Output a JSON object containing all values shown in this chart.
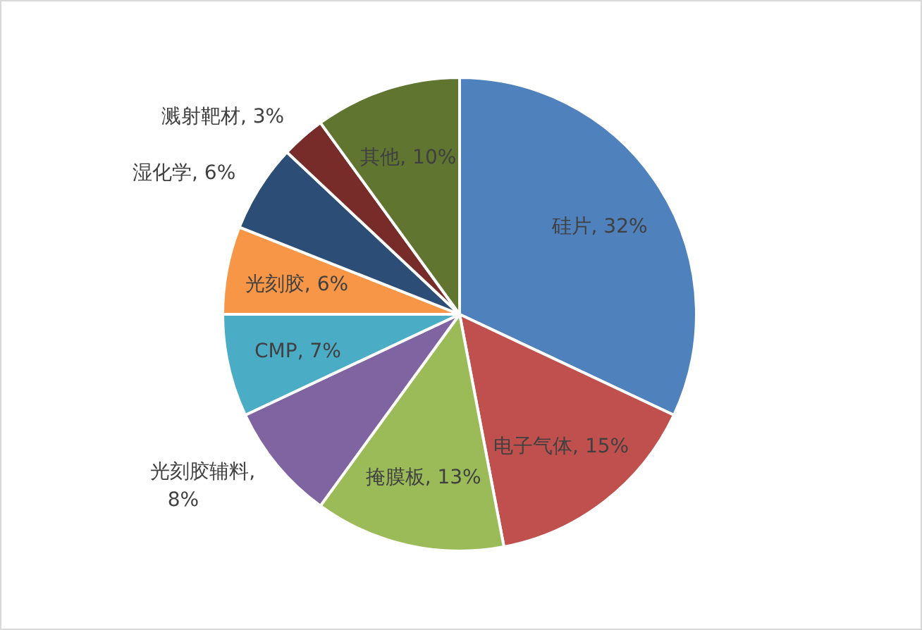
{
  "chart_data": {
    "type": "pie",
    "categories": [
      "硅片",
      "电子气体",
      "掩膜板",
      "光刻胶辅料",
      "CMP",
      "光刻胶",
      "湿化学",
      "溅射靶材",
      "其他"
    ],
    "values": [
      32,
      15,
      13,
      8,
      7,
      6,
      6,
      3,
      10
    ],
    "colors": [
      "#4f81bd",
      "#c0504d",
      "#9bbb59",
      "#8064a2",
      "#4bacc6",
      "#f79646",
      "#2c4d75",
      "#772c2a",
      "#5f7530"
    ],
    "value_labels": [
      ", 32%",
      ", 15%",
      ", 13%",
      ", 8%",
      ", 7%",
      ", 6%",
      ", 6%",
      ", 3%",
      ", 10%"
    ]
  }
}
